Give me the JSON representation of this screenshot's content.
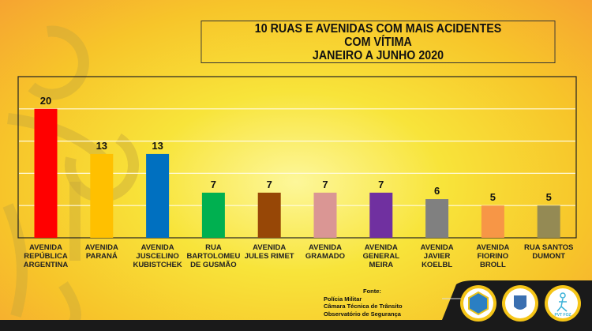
{
  "chart_data": {
    "type": "bar",
    "title": [
      "10 RUAS E AVENIDAS COM MAIS ACIDENTES",
      "COM VÍTIMA",
      "JANEIRO A JUNHO 2020"
    ],
    "categories": [
      [
        "AVENIDA",
        "REPÚBLICA",
        "ARGENTINA"
      ],
      [
        "AVENIDA",
        "PARANÁ"
      ],
      [
        "AVENIDA",
        "JUSCELINO",
        "KUBISTCHEK"
      ],
      [
        "RUA",
        "BARTOLOMEU",
        "DE GUSMÃO"
      ],
      [
        "AVENIDA",
        "JULES RIMET"
      ],
      [
        "AVENIDA",
        "GRAMADO"
      ],
      [
        "AVENIDA",
        "GENERAL",
        "MEIRA"
      ],
      [
        "AVENIDA",
        "JAVIER",
        "KOELBL"
      ],
      [
        "AVENIDA",
        "FIORINO",
        "BROLL"
      ],
      [
        "RUA SANTOS",
        "DUMONT"
      ]
    ],
    "values": [
      20,
      13,
      13,
      7,
      7,
      7,
      7,
      6,
      5,
      5
    ],
    "colors": [
      "#ff0000",
      "#ffc000",
      "#0070c0",
      "#00b050",
      "#974706",
      "#da9694",
      "#7030a0",
      "#808080",
      "#f79646",
      "#948a54"
    ],
    "ylim": [
      0,
      25
    ],
    "grid": true,
    "data_labels": true,
    "xlabel": "",
    "ylabel": ""
  },
  "source": {
    "heading": "Fonte:",
    "lines": [
      "Polícia Militar",
      "Câmara Técnica de Trânsito",
      "Observatório de Segurança"
    ]
  },
  "footer": {
    "logos": [
      "observatorio-logo",
      "municipal-coat-of-arms-logo",
      "pvt-foz-logo"
    ],
    "pvt_label": "PVT FOZ"
  }
}
